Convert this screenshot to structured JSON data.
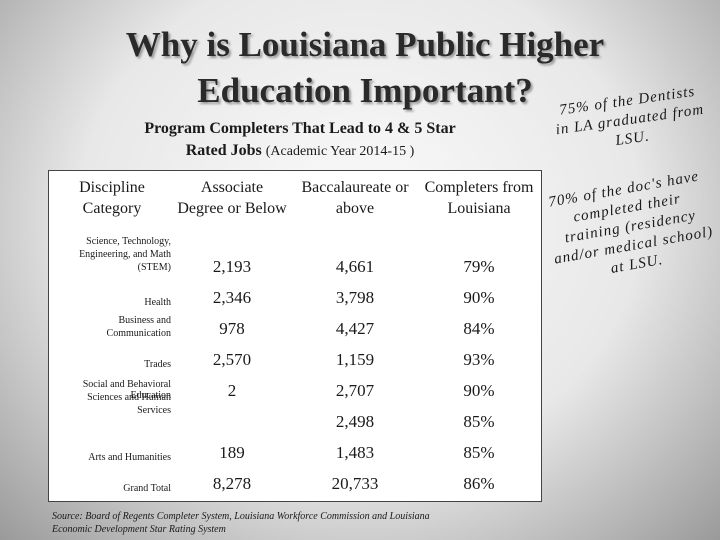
{
  "slide": {
    "title": "Why is Louisiana Public Higher Education Important?",
    "subtitle": "Program Completers That Lead to 4 & 5 Star Rated Jobs",
    "subtitle_note": "(Academic Year 2014-15 )",
    "table": {
      "header": [
        "Discipline Category",
        "Associate Degree or Below",
        "Baccalaureate or above",
        "Completers from Louisiana"
      ],
      "rows": [
        [
          "Science, Technology, Engineering, and Math (STEM)",
          "2,193",
          "4,661",
          "79%"
        ],
        [
          "Health",
          "2,346",
          "3,798",
          "90%"
        ],
        [
          "Business and Communication",
          "978",
          "4,427",
          "84%"
        ],
        [
          "Trades",
          "2,570",
          "1,159",
          "93%"
        ],
        [
          "Education",
          "2",
          "2,707",
          "90%"
        ],
        [
          "Social and Behavioral Sciences and Human Services",
          null,
          "2,498",
          "85%"
        ],
        [
          "Arts and Humanities",
          "189",
          "1,483",
          "85%"
        ],
        [
          "Grand Total",
          "8,278",
          "20,733",
          "86%"
        ]
      ]
    },
    "source": "Source: Board of Regents Completer System, Louisiana Workforce Commission and Louisiana Economic Development Star Rating System",
    "callouts": [
      "75% of the Dentists in LA graduated from LSU.",
      "70% of the doc's have completed their training (residency and/or medical school) at LSU."
    ]
  }
}
